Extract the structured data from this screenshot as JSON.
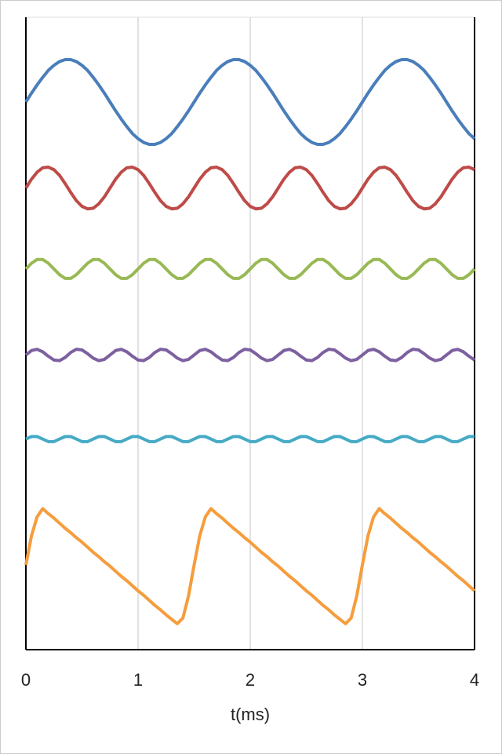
{
  "chart_data": {
    "type": "line",
    "xlabel": "t(ms)",
    "x": [
      0,
      0.05,
      0.1,
      0.15,
      0.2,
      0.25,
      0.3,
      0.35,
      0.4,
      0.45,
      0.5,
      0.55,
      0.6,
      0.65,
      0.7,
      0.75,
      0.8,
      0.85,
      0.9,
      0.95,
      1,
      1.05,
      1.1,
      1.15,
      1.2,
      1.25,
      1.3,
      1.35,
      1.4,
      1.45,
      1.5,
      1.55,
      1.6,
      1.65,
      1.7,
      1.75,
      1.8,
      1.85,
      1.9,
      1.95,
      2,
      2.05,
      2.1,
      2.15,
      2.2,
      2.25,
      2.3,
      2.35,
      2.4,
      2.45,
      2.5,
      2.55,
      2.6,
      2.65,
      2.7,
      2.75,
      2.8,
      2.85,
      2.9,
      2.95,
      3,
      3.05,
      3.1,
      3.15,
      3.2,
      3.25,
      3.3,
      3.35,
      3.4,
      3.45,
      3.5,
      3.55,
      3.6,
      3.65,
      3.7,
      3.75,
      3.8,
      3.85,
      3.9,
      3.95,
      4
    ],
    "series": [
      {
        "color": "#4a7ebb",
        "values": [
          86.6,
          88.0,
          89.3,
          90.5,
          91.6,
          92.4,
          93.0,
          93.3,
          93.3,
          93.0,
          92.4,
          91.6,
          90.5,
          89.3,
          88.0,
          86.6,
          85.2,
          83.9,
          82.7,
          81.6,
          80.8,
          80.2,
          79.9,
          79.9,
          80.2,
          80.8,
          81.6,
          82.7,
          83.9,
          85.2,
          86.6,
          88.0,
          89.3,
          90.5,
          91.6,
          92.4,
          93.0,
          93.3,
          93.3,
          93.0,
          92.4,
          91.6,
          90.5,
          89.3,
          88.0,
          86.6,
          85.2,
          83.9,
          82.7,
          81.6,
          80.8,
          80.2,
          79.9,
          79.9,
          80.2,
          80.8,
          81.6,
          82.7,
          83.9,
          85.2,
          86.6,
          88.0,
          89.3,
          90.5,
          91.6,
          92.4,
          93.0,
          93.3,
          93.3,
          93.0,
          92.4,
          91.6,
          90.5,
          89.3,
          88.0,
          86.6,
          85.2,
          83.9,
          82.7,
          81.6,
          80.8
        ]
      },
      {
        "color": "#be4b48",
        "values": [
          73.0,
          74.4,
          75.5,
          76.2,
          76.3,
          75.9,
          75.0,
          73.7,
          72.3,
          71.0,
          70.1,
          69.7,
          69.8,
          70.5,
          71.6,
          73.0,
          74.4,
          75.5,
          76.2,
          76.3,
          75.9,
          75.0,
          73.7,
          72.3,
          71.0,
          70.1,
          69.7,
          69.8,
          70.5,
          71.6,
          73.0,
          74.4,
          75.5,
          76.2,
          76.3,
          75.9,
          75.0,
          73.7,
          72.3,
          71.0,
          70.1,
          69.7,
          69.8,
          70.5,
          71.6,
          73.0,
          74.4,
          75.5,
          76.2,
          76.3,
          75.9,
          75.0,
          73.7,
          72.3,
          71.0,
          70.1,
          69.7,
          69.8,
          70.5,
          71.6,
          73.0,
          74.4,
          75.5,
          76.2,
          76.3,
          75.9,
          75.0,
          73.7,
          72.3,
          71.0,
          70.1,
          69.7,
          69.8,
          70.5,
          71.6,
          73.0,
          74.4,
          75.5,
          76.2,
          76.3,
          75.9
        ]
      },
      {
        "color": "#98b954",
        "values": [
          60.2,
          61.1,
          61.7,
          61.7,
          61.1,
          60.2,
          59.3,
          58.7,
          58.7,
          59.3,
          60.2,
          61.1,
          61.7,
          61.7,
          61.1,
          60.2,
          59.3,
          58.7,
          58.7,
          59.3,
          60.2,
          61.1,
          61.7,
          61.7,
          61.1,
          60.2,
          59.3,
          58.7,
          58.7,
          59.3,
          60.2,
          61.1,
          61.7,
          61.7,
          61.1,
          60.2,
          59.3,
          58.7,
          58.7,
          59.3,
          60.2,
          61.1,
          61.7,
          61.7,
          61.1,
          60.2,
          59.3,
          58.7,
          58.7,
          59.3,
          60.2,
          61.1,
          61.7,
          61.7,
          61.1,
          60.2,
          59.3,
          58.7,
          58.7,
          59.3,
          60.2,
          61.1,
          61.7,
          61.7,
          61.1,
          60.2,
          59.3,
          58.7,
          58.7,
          59.3,
          60.2,
          61.1,
          61.7,
          61.7,
          61.1,
          60.2,
          59.3,
          58.7,
          58.7,
          59.3,
          60.2
        ]
      },
      {
        "color": "#7d60a0",
        "values": [
          46.6,
          47.3,
          47.5,
          47.1,
          46.4,
          45.8,
          45.7,
          46.2,
          47.0,
          47.5,
          47.4,
          46.8,
          46.1,
          45.7,
          45.9,
          46.6,
          47.3,
          47.5,
          47.1,
          46.4,
          45.8,
          45.7,
          46.2,
          47.0,
          47.5,
          47.4,
          46.8,
          46.1,
          45.7,
          45.9,
          46.6,
          47.3,
          47.5,
          47.1,
          46.4,
          45.8,
          45.7,
          46.2,
          47.0,
          47.5,
          47.4,
          46.8,
          46.1,
          45.7,
          45.9,
          46.6,
          47.3,
          47.5,
          47.1,
          46.4,
          45.8,
          45.7,
          46.2,
          47.0,
          47.5,
          47.4,
          46.8,
          46.1,
          45.7,
          45.9,
          46.6,
          47.3,
          47.5,
          47.1,
          46.4,
          45.8,
          45.7,
          46.2,
          47.0,
          47.5,
          47.4,
          46.8,
          46.1,
          45.7,
          45.9,
          46.6,
          47.3,
          47.5,
          47.1,
          46.4,
          45.8
        ]
      },
      {
        "color": "#46aac5",
        "values": [
          33.3,
          33.7,
          33.7,
          33.3,
          32.9,
          32.9,
          33.3,
          33.7,
          33.7,
          33.3,
          32.9,
          32.9,
          33.3,
          33.7,
          33.7,
          33.3,
          32.9,
          32.9,
          33.3,
          33.7,
          33.7,
          33.3,
          32.9,
          32.9,
          33.3,
          33.7,
          33.7,
          33.3,
          32.9,
          32.9,
          33.3,
          33.7,
          33.7,
          33.3,
          32.9,
          32.9,
          33.3,
          33.7,
          33.7,
          33.3,
          32.9,
          32.9,
          33.3,
          33.7,
          33.7,
          33.3,
          32.9,
          32.9,
          33.3,
          33.7,
          33.7,
          33.3,
          32.9,
          32.9,
          33.3,
          33.7,
          33.7,
          33.3,
          32.9,
          32.9,
          33.3,
          33.7,
          33.7,
          33.3,
          32.9,
          32.9,
          33.3,
          33.7,
          33.7,
          33.3,
          32.9,
          32.9,
          33.3,
          33.7,
          33.7,
          33.3,
          32.9,
          32.9,
          33.3,
          33.7,
          33.7
        ]
      },
      {
        "color": "#f59d3d",
        "values": [
          13.4,
          18.0,
          21.0,
          22.3,
          21.5,
          20.8,
          20.0,
          19.2,
          18.5,
          17.7,
          17.0,
          16.2,
          15.4,
          14.7,
          13.9,
          13.2,
          12.4,
          11.6,
          10.9,
          10.1,
          9.3,
          8.6,
          7.8,
          7.0,
          6.3,
          5.5,
          4.8,
          4.1,
          5.0,
          8.5,
          13.4,
          18.0,
          21.0,
          22.3,
          21.5,
          20.8,
          20.0,
          19.2,
          18.5,
          17.7,
          17.0,
          16.2,
          15.4,
          14.7,
          13.9,
          13.2,
          12.4,
          11.6,
          10.9,
          10.1,
          9.3,
          8.6,
          7.8,
          7.0,
          6.3,
          5.5,
          4.8,
          4.1,
          5.0,
          8.5,
          13.4,
          18.0,
          21.0,
          22.3,
          21.5,
          20.8,
          20.0,
          19.2,
          18.5,
          17.7,
          17.0,
          16.2,
          15.4,
          14.7,
          13.9,
          13.2,
          12.4,
          11.6,
          10.9,
          10.1,
          9.3
        ]
      }
    ],
    "xlim": [
      0,
      4
    ],
    "xticks": [
      0,
      1,
      2,
      3,
      4
    ],
    "ylim": [
      0,
      100
    ],
    "grid": true
  }
}
